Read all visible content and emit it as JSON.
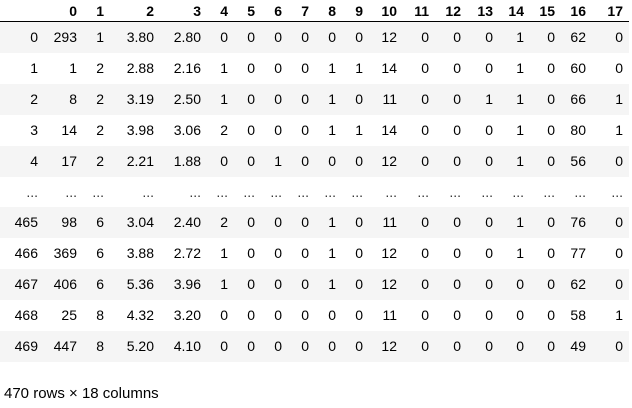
{
  "dataframe": {
    "columns": [
      "0",
      "1",
      "2",
      "3",
      "4",
      "5",
      "6",
      "7",
      "8",
      "9",
      "10",
      "11",
      "12",
      "13",
      "14",
      "15",
      "16",
      "17"
    ],
    "rows": [
      {
        "index": "0",
        "cells": [
          "293",
          "1",
          "3.80",
          "2.80",
          "0",
          "0",
          "0",
          "0",
          "0",
          "0",
          "12",
          "0",
          "0",
          "0",
          "1",
          "0",
          "62",
          "0"
        ]
      },
      {
        "index": "1",
        "cells": [
          "1",
          "2",
          "2.88",
          "2.16",
          "1",
          "0",
          "0",
          "0",
          "1",
          "1",
          "14",
          "0",
          "0",
          "0",
          "1",
          "0",
          "60",
          "0"
        ]
      },
      {
        "index": "2",
        "cells": [
          "8",
          "2",
          "3.19",
          "2.50",
          "1",
          "0",
          "0",
          "0",
          "1",
          "0",
          "11",
          "0",
          "0",
          "1",
          "1",
          "0",
          "66",
          "1"
        ]
      },
      {
        "index": "3",
        "cells": [
          "14",
          "2",
          "3.98",
          "3.06",
          "2",
          "0",
          "0",
          "0",
          "1",
          "1",
          "14",
          "0",
          "0",
          "0",
          "1",
          "0",
          "80",
          "1"
        ]
      },
      {
        "index": "4",
        "cells": [
          "17",
          "2",
          "2.21",
          "1.88",
          "0",
          "0",
          "1",
          "0",
          "0",
          "0",
          "12",
          "0",
          "0",
          "0",
          "1",
          "0",
          "56",
          "0"
        ]
      },
      {
        "index": "...",
        "ellipsis": true,
        "cells": [
          "...",
          "...",
          "...",
          "...",
          "...",
          "...",
          "...",
          "...",
          "...",
          "...",
          "...",
          "...",
          "...",
          "...",
          "...",
          "...",
          "...",
          "..."
        ]
      },
      {
        "index": "465",
        "cells": [
          "98",
          "6",
          "3.04",
          "2.40",
          "2",
          "0",
          "0",
          "0",
          "1",
          "0",
          "11",
          "0",
          "0",
          "0",
          "1",
          "0",
          "76",
          "0"
        ]
      },
      {
        "index": "466",
        "cells": [
          "369",
          "6",
          "3.88",
          "2.72",
          "1",
          "0",
          "0",
          "0",
          "1",
          "0",
          "12",
          "0",
          "0",
          "0",
          "1",
          "0",
          "77",
          "0"
        ]
      },
      {
        "index": "467",
        "cells": [
          "406",
          "6",
          "5.36",
          "3.96",
          "1",
          "0",
          "0",
          "0",
          "1",
          "0",
          "12",
          "0",
          "0",
          "0",
          "0",
          "0",
          "62",
          "0"
        ]
      },
      {
        "index": "468",
        "cells": [
          "25",
          "8",
          "4.32",
          "3.20",
          "0",
          "0",
          "0",
          "0",
          "0",
          "0",
          "11",
          "0",
          "0",
          "0",
          "0",
          "0",
          "58",
          "1"
        ]
      },
      {
        "index": "469",
        "cells": [
          "447",
          "8",
          "5.20",
          "4.10",
          "0",
          "0",
          "0",
          "0",
          "0",
          "0",
          "12",
          "0",
          "0",
          "0",
          "0",
          "0",
          "49",
          "0"
        ]
      }
    ],
    "shape_caption": "470 rows × 18 columns"
  }
}
